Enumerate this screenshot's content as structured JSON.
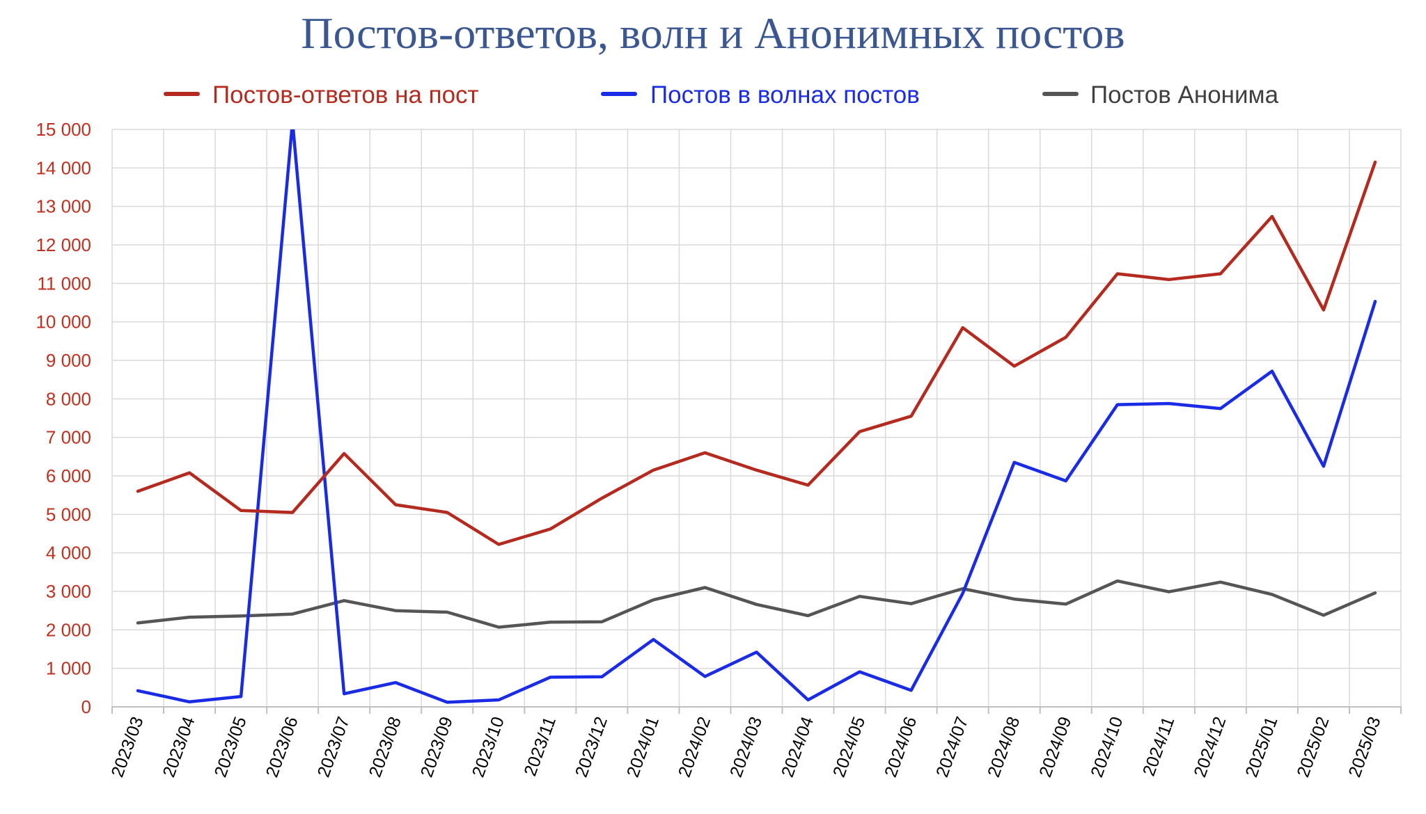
{
  "chart_data": {
    "type": "line",
    "title": "Постов-ответов, волн и Анонимных постов",
    "categories": [
      "2023/03",
      "2023/04",
      "2023/05",
      "2023/06",
      "2023/07",
      "2023/08",
      "2023/09",
      "2023/10",
      "2023/11",
      "2023/12",
      "2024/01",
      "2024/02",
      "2024/03",
      "2024/04",
      "2024/05",
      "2024/06",
      "2024/07",
      "2024/08",
      "2024/09",
      "2024/10",
      "2024/11",
      "2024/12",
      "2025/01",
      "2025/02",
      "2025/03"
    ],
    "series": [
      {
        "name": "Постов-ответов на пост",
        "color": "#B42A1E",
        "values": [
          5600,
          6080,
          5100,
          5050,
          6580,
          5250,
          5050,
          4220,
          4620,
          5420,
          6150,
          6600,
          6150,
          5760,
          7150,
          7550,
          9850,
          8850,
          9600,
          11250,
          11100,
          11250,
          12740,
          10310,
          14150
        ]
      },
      {
        "name": "Постов в волнах постов",
        "color": "#1A2BE6",
        "values": [
          420,
          130,
          270,
          15200,
          340,
          630,
          120,
          180,
          770,
          780,
          1750,
          790,
          1420,
          180,
          910,
          430,
          2950,
          6350,
          5870,
          7850,
          7880,
          7750,
          8720,
          6250,
          10530
        ]
      },
      {
        "name": "Постов Анонима",
        "color": "#555555",
        "values": [
          2180,
          2330,
          2360,
          2410,
          2760,
          2500,
          2460,
          2070,
          2200,
          2210,
          2780,
          3100,
          2660,
          2370,
          2870,
          2680,
          3070,
          2800,
          2670,
          3270,
          2990,
          3240,
          2920,
          2380,
          2960
        ]
      }
    ],
    "ylim": [
      0,
      15000
    ],
    "yticks": [
      0,
      1000,
      2000,
      3000,
      4000,
      5000,
      6000,
      7000,
      8000,
      9000,
      10000,
      11000,
      12000,
      13000,
      14000,
      15000
    ],
    "ytick_labels": [
      "0",
      "1 000",
      "2 000",
      "3 000",
      "4 000",
      "5 000",
      "6 000",
      "7 000",
      "8 000",
      "9 000",
      "10 000",
      "11 000",
      "12 000",
      "13 000",
      "14 000",
      "15 000"
    ],
    "ytick_color": "#C0301E",
    "grid": true,
    "legend_position": "top"
  }
}
